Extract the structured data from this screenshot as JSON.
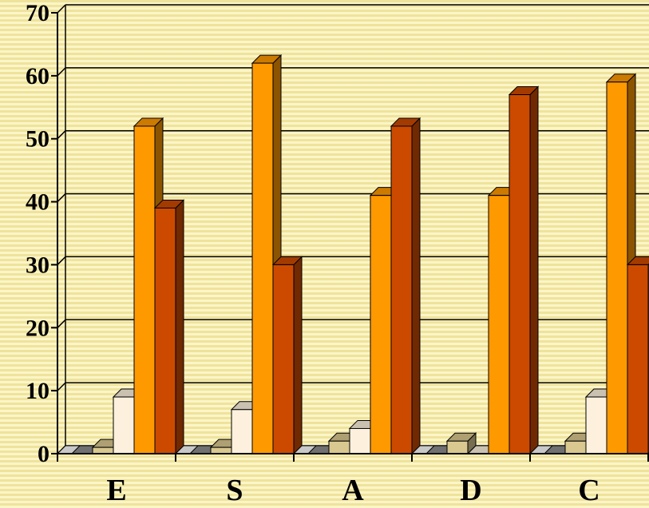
{
  "chart_data": {
    "type": "bar",
    "categories": [
      "E",
      "S",
      "A",
      "D",
      "C"
    ],
    "series": [
      {
        "values": [
          0,
          0,
          0,
          0,
          0
        ],
        "color": "#8c8c8c"
      },
      {
        "values": [
          1,
          1,
          2,
          2,
          2
        ],
        "color": "#d9c88f"
      },
      {
        "values": [
          9,
          7,
          4,
          0,
          9
        ],
        "color": "#fdf1dd"
      },
      {
        "values": [
          52,
          62,
          41,
          41,
          59
        ],
        "color": "#ff9900"
      },
      {
        "values": [
          39,
          30,
          52,
          57,
          30
        ],
        "color": "#cc4a00"
      }
    ],
    "yticks": [
      "0",
      "10",
      "20",
      "30",
      "40",
      "50",
      "60",
      "70"
    ],
    "ylim": [
      0,
      70
    ],
    "grid": true,
    "title": "",
    "xlabel": "",
    "ylabel": ""
  }
}
